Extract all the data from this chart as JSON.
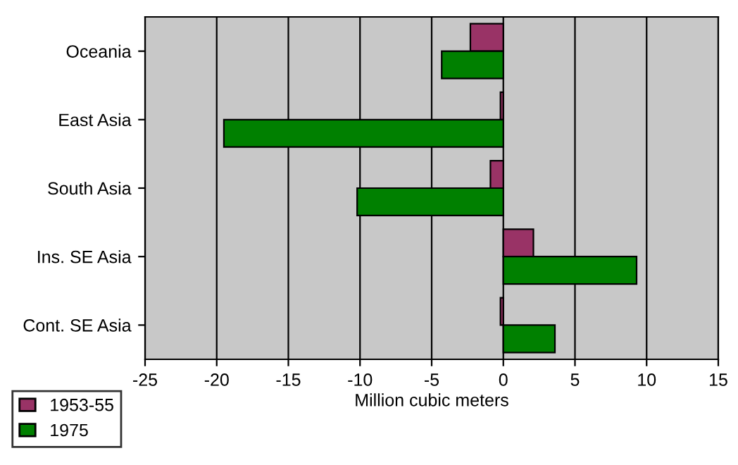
{
  "chart_data": {
    "type": "bar",
    "orientation": "horizontal",
    "xlabel": "Million cubic meters",
    "categories": [
      "Oceania",
      "East Asia",
      "South Asia",
      "Ins. SE Asia",
      "Cont. SE Asia"
    ],
    "series": [
      {
        "name": "1953-55",
        "color": "#993366",
        "values": [
          -2.3,
          -0.2,
          -0.9,
          2.1,
          -0.2
        ]
      },
      {
        "name": "1975",
        "color": "#008000",
        "values": [
          -4.3,
          -19.5,
          -10.2,
          9.3,
          3.6
        ]
      }
    ],
    "xlim": [
      -25,
      15
    ],
    "xticks": [
      -25,
      -20,
      -15,
      -10,
      -5,
      0,
      5,
      10,
      15
    ],
    "grid": "x",
    "legend": "bottom left"
  }
}
